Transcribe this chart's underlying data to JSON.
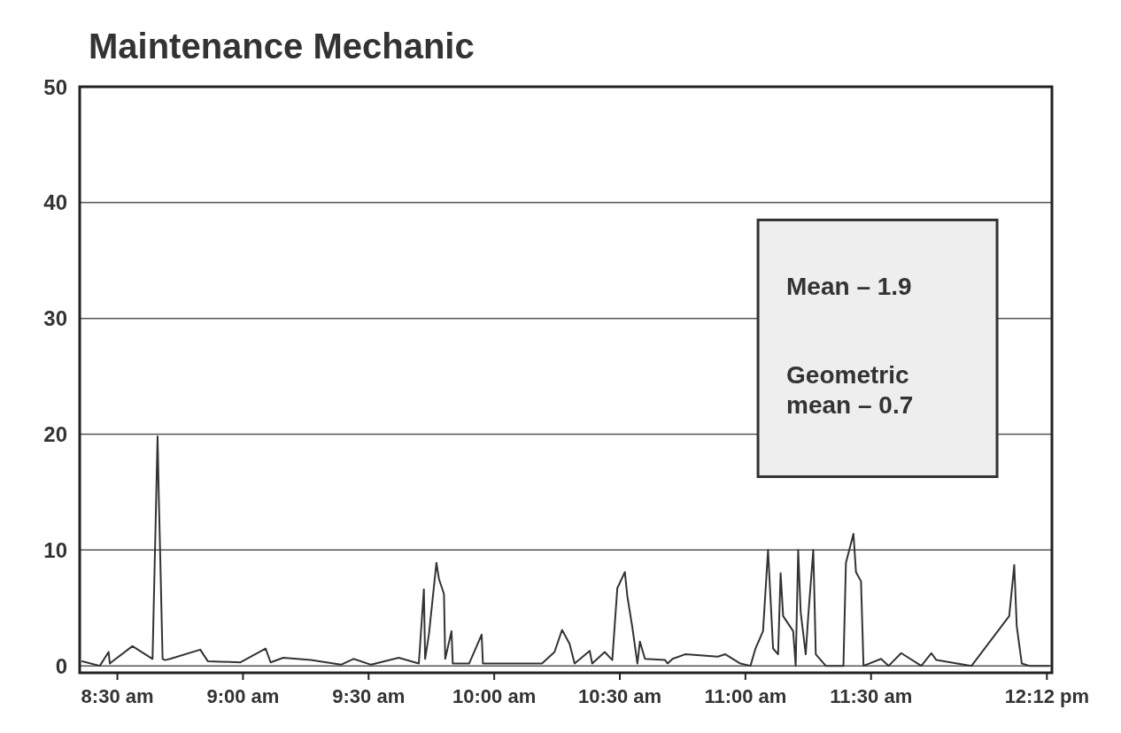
{
  "chart_data": {
    "type": "line",
    "title": "Maintenance Mechanic",
    "x": [
      8.36,
      8.43,
      8.465,
      8.47,
      8.475,
      8.56,
      8.64,
      8.66,
      8.665,
      8.67,
      8.68,
      8.69,
      8.71,
      8.83,
      8.86,
      8.99,
      9.09,
      9.11,
      9.16,
      9.27,
      9.39,
      9.44,
      9.51,
      9.62,
      9.7,
      9.72,
      9.725,
      9.74,
      9.77,
      9.78,
      9.8,
      9.805,
      9.83,
      9.835,
      9.9,
      9.95,
      9.955,
      10.19,
      10.24,
      10.27,
      10.3,
      10.32,
      10.38,
      10.39,
      10.44,
      10.47,
      10.49,
      10.52,
      10.53,
      10.55,
      10.57,
      10.58,
      10.6,
      10.68,
      10.69,
      10.71,
      10.76,
      10.89,
      10.92,
      10.98,
      11.02,
      11.04,
      11.07,
      11.09,
      11.11,
      11.13,
      11.14,
      11.15,
      11.19,
      11.2,
      11.21,
      11.22,
      11.24,
      11.25,
      11.27,
      11.275,
      11.28,
      11.32,
      11.39,
      11.4,
      11.43,
      11.44,
      11.46,
      11.47,
      11.54,
      11.57,
      11.62,
      11.7,
      11.74,
      11.76,
      11.9,
      12.05,
      12.07,
      12.08,
      12.1,
      12.13,
      12.21
    ],
    "series": [
      {
        "color": "#333333",
        "values": [
          0.4,
          0,
          1.2,
          0.2,
          0.3,
          1.7,
          0.6,
          19.8,
          14.5,
          10,
          0.6,
          0.5,
          0.6,
          1.4,
          0.4,
          0.3,
          1.5,
          0.3,
          0.7,
          0.5,
          0.1,
          0.6,
          0.1,
          0.7,
          0.2,
          6.6,
          0.6,
          2.7,
          8.9,
          7.5,
          6.2,
          0.6,
          3,
          0.2,
          0.2,
          2.7,
          0.2,
          0.2,
          1.2,
          3.1,
          1.9,
          0.2,
          1.3,
          0.2,
          1.2,
          0.5,
          6.7,
          8.1,
          6,
          3.3,
          0.2,
          2.1,
          0.6,
          0.5,
          0.2,
          0.6,
          1,
          0.8,
          1,
          0.2,
          0,
          1.5,
          3,
          10,
          1.5,
          1,
          8,
          4.3,
          3,
          0,
          10,
          4.6,
          1,
          4.3,
          10,
          5.6,
          1,
          0,
          0,
          8.9,
          11.4,
          8.1,
          7.3,
          0,
          0.6,
          0,
          1.1,
          0,
          1.1,
          0.5,
          0,
          4.3,
          8.7,
          3.4,
          0.2,
          0,
          0
        ]
      }
    ],
    "xlim": [
      8.35,
      12.22
    ],
    "ylim": [
      -0.6,
      50
    ],
    "xticks": [
      {
        "value": 8.5,
        "label": "8:30 am"
      },
      {
        "value": 9,
        "label": "9:00 am"
      },
      {
        "value": 9.5,
        "label": "9:30 am"
      },
      {
        "value": 10,
        "label": "10:00 am"
      },
      {
        "value": 10.5,
        "label": "10:30 am"
      },
      {
        "value": 11,
        "label": "11:00 am"
      },
      {
        "value": 11.5,
        "label": "11:30 am"
      },
      {
        "value": 12.2,
        "label": "12:12 pm"
      }
    ],
    "yticks": [
      0,
      10,
      20,
      30,
      40,
      50
    ],
    "grid": "y",
    "annotations": [
      "Mean – 1.9",
      "Geometric mean – 0.7"
    ]
  }
}
